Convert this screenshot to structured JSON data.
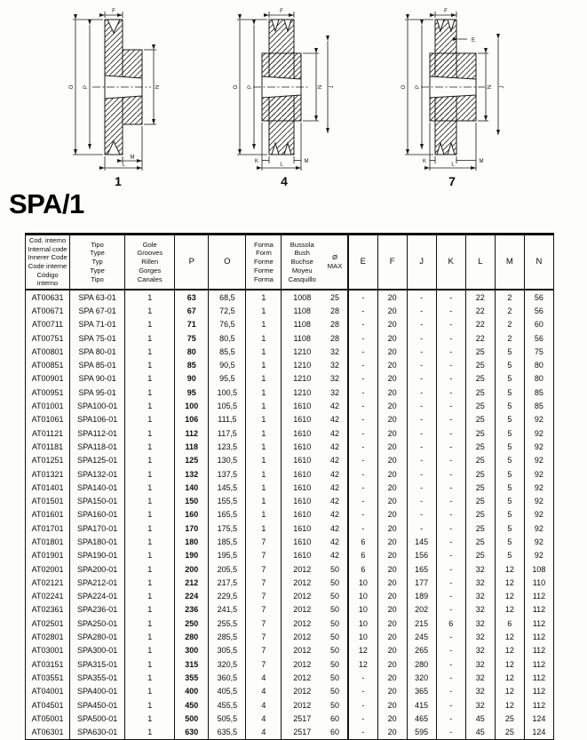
{
  "page": {
    "title": "SPA/1"
  },
  "drawings": [
    {
      "number": "1",
      "labels": {
        "f": "F",
        "o": "O",
        "p": "P",
        "n": "N",
        "m": "M",
        "l": "L"
      }
    },
    {
      "number": "4",
      "labels": {
        "f": "F",
        "o": "O",
        "p": "P",
        "n": "N",
        "j": "J",
        "k": "K",
        "m": "M",
        "l": "L"
      }
    },
    {
      "number": "7",
      "labels": {
        "f": "F",
        "e": "E",
        "o": "O",
        "p": "P",
        "n": "N",
        "j": "J",
        "k": "K",
        "m": "M",
        "l": "L"
      }
    }
  ],
  "table": {
    "headers": {
      "code": [
        "Cod. interno",
        "Internal code",
        "Innerer Code",
        "Code interne",
        "Código interno"
      ],
      "type": [
        "Tipo",
        "Type",
        "Typ",
        "Type",
        "Tipo"
      ],
      "grooves": [
        "Gole",
        "Grooves",
        "Rillen",
        "Gorges",
        "Canales"
      ],
      "p": "P",
      "o": "O",
      "form": [
        "Forma",
        "Form",
        "Forme",
        "Forme",
        "Forma"
      ],
      "bush": [
        "Bussola",
        "Bush",
        "Buchse",
        "Moyeu",
        "Casquillo"
      ],
      "omax": [
        "Ø",
        "MAX"
      ],
      "dims": [
        "E",
        "F",
        "J",
        "K",
        "L",
        "M",
        "N"
      ]
    },
    "rows": [
      [
        "AT00631",
        "SPA 63-01",
        "1",
        "63",
        "68,5",
        "1",
        "1008",
        "25",
        "-",
        "20",
        "-",
        "-",
        "22",
        "2",
        "56"
      ],
      [
        "AT00671",
        "SPA 67-01",
        "1",
        "67",
        "72,5",
        "1",
        "1108",
        "28",
        "-",
        "20",
        "-",
        "-",
        "22",
        "2",
        "56"
      ],
      [
        "AT00711",
        "SPA 71-01",
        "1",
        "71",
        "76,5",
        "1",
        "1108",
        "28",
        "-",
        "20",
        "-",
        "-",
        "22",
        "2",
        "60"
      ],
      [
        "AT00751",
        "SPA 75-01",
        "1",
        "75",
        "80,5",
        "1",
        "1108",
        "28",
        "-",
        "20",
        "-",
        "-",
        "22",
        "2",
        "56"
      ],
      [
        "AT00801",
        "SPA 80-01",
        "1",
        "80",
        "85,5",
        "1",
        "1210",
        "32",
        "-",
        "20",
        "-",
        "-",
        "25",
        "5",
        "75"
      ],
      [
        "AT00851",
        "SPA 85-01",
        "1",
        "85",
        "90,5",
        "1",
        "1210",
        "32",
        "-",
        "20",
        "-",
        "-",
        "25",
        "5",
        "80"
      ],
      [
        "AT00901",
        "SPA 90-01",
        "1",
        "90",
        "95,5",
        "1",
        "1210",
        "32",
        "-",
        "20",
        "-",
        "-",
        "25",
        "5",
        "80"
      ],
      [
        "AT00951",
        "SPA 95-01",
        "1",
        "95",
        "100,5",
        "1",
        "1210",
        "32",
        "-",
        "20",
        "-",
        "-",
        "25",
        "5",
        "85"
      ],
      [
        "AT01001",
        "SPA100-01",
        "1",
        "100",
        "105,5",
        "1",
        "1610",
        "42",
        "-",
        "20",
        "-",
        "-",
        "25",
        "5",
        "85"
      ],
      [
        "AT01061",
        "SPA106-01",
        "1",
        "106",
        "111,5",
        "1",
        "1610",
        "42",
        "-",
        "20",
        "-",
        "-",
        "25",
        "5",
        "92"
      ],
      [
        "AT01121",
        "SPA112-01",
        "1",
        "112",
        "117,5",
        "1",
        "1610",
        "42",
        "-",
        "20",
        "-",
        "-",
        "25",
        "5",
        "92"
      ],
      [
        "AT01181",
        "SPA118-01",
        "1",
        "118",
        "123,5",
        "1",
        "1610",
        "42",
        "-",
        "20",
        "-",
        "-",
        "25",
        "5",
        "92"
      ],
      [
        "AT01251",
        "SPA125-01",
        "1",
        "125",
        "130,5",
        "1",
        "1610",
        "42",
        "-",
        "20",
        "-",
        "-",
        "25",
        "5",
        "92"
      ],
      [
        "AT01321",
        "SPA132-01",
        "1",
        "132",
        "137,5",
        "1",
        "1610",
        "42",
        "-",
        "20",
        "-",
        "-",
        "25",
        "5",
        "92"
      ],
      [
        "AT01401",
        "SPA140-01",
        "1",
        "140",
        "145,5",
        "1",
        "1610",
        "42",
        "-",
        "20",
        "-",
        "-",
        "25",
        "5",
        "92"
      ],
      [
        "AT01501",
        "SPA150-01",
        "1",
        "150",
        "155,5",
        "1",
        "1610",
        "42",
        "-",
        "20",
        "-",
        "-",
        "25",
        "5",
        "92"
      ],
      [
        "AT01601",
        "SPA160-01",
        "1",
        "160",
        "165,5",
        "1",
        "1610",
        "42",
        "-",
        "20",
        "-",
        "-",
        "25",
        "5",
        "92"
      ],
      [
        "AT01701",
        "SPA170-01",
        "1",
        "170",
        "175,5",
        "1",
        "1610",
        "42",
        "-",
        "20",
        "-",
        "-",
        "25",
        "5",
        "92"
      ],
      [
        "AT01801",
        "SPA180-01",
        "1",
        "180",
        "185,5",
        "7",
        "1610",
        "42",
        "6",
        "20",
        "145",
        "-",
        "25",
        "5",
        "92"
      ],
      [
        "AT01901",
        "SPA190-01",
        "1",
        "190",
        "195,5",
        "7",
        "1610",
        "42",
        "6",
        "20",
        "156",
        "-",
        "25",
        "5",
        "92"
      ],
      [
        "AT02001",
        "SPA200-01",
        "1",
        "200",
        "205,5",
        "7",
        "2012",
        "50",
        "6",
        "20",
        "165",
        "-",
        "32",
        "12",
        "108"
      ],
      [
        "AT02121",
        "SPA212-01",
        "1",
        "212",
        "217,5",
        "7",
        "2012",
        "50",
        "10",
        "20",
        "177",
        "-",
        "32",
        "12",
        "110"
      ],
      [
        "AT02241",
        "SPA224-01",
        "1",
        "224",
        "229,5",
        "7",
        "2012",
        "50",
        "10",
        "20",
        "189",
        "-",
        "32",
        "12",
        "112"
      ],
      [
        "AT02361",
        "SPA236-01",
        "1",
        "236",
        "241,5",
        "7",
        "2012",
        "50",
        "10",
        "20",
        "202",
        "-",
        "32",
        "12",
        "112"
      ],
      [
        "AT02501",
        "SPA250-01",
        "1",
        "250",
        "255,5",
        "7",
        "2012",
        "50",
        "10",
        "20",
        "215",
        "6",
        "32",
        "6",
        "112"
      ],
      [
        "AT02801",
        "SPA280-01",
        "1",
        "280",
        "285,5",
        "7",
        "2012",
        "50",
        "10",
        "20",
        "245",
        "-",
        "32",
        "12",
        "112"
      ],
      [
        "AT03001",
        "SPA300-01",
        "1",
        "300",
        "305,5",
        "7",
        "2012",
        "50",
        "12",
        "20",
        "265",
        "-",
        "32",
        "12",
        "112"
      ],
      [
        "AT03151",
        "SPA315-01",
        "1",
        "315",
        "320,5",
        "7",
        "2012",
        "50",
        "12",
        "20",
        "280",
        "-",
        "32",
        "12",
        "112"
      ],
      [
        "AT03551",
        "SPA355-01",
        "1",
        "355",
        "360,5",
        "4",
        "2012",
        "50",
        "-",
        "20",
        "320",
        "-",
        "32",
        "12",
        "112"
      ],
      [
        "AT04001",
        "SPA400-01",
        "1",
        "400",
        "405,5",
        "4",
        "2012",
        "50",
        "-",
        "20",
        "365",
        "-",
        "32",
        "12",
        "112"
      ],
      [
        "AT04501",
        "SPA450-01",
        "1",
        "450",
        "455,5",
        "4",
        "2012",
        "50",
        "-",
        "20",
        "415",
        "-",
        "32",
        "12",
        "112"
      ],
      [
        "AT05001",
        "SPA500-01",
        "1",
        "500",
        "505,5",
        "4",
        "2517",
        "60",
        "-",
        "20",
        "465",
        "-",
        "45",
        "25",
        "124"
      ],
      [
        "AT06301",
        "SPA630-01",
        "1",
        "630",
        "635,5",
        "4",
        "2517",
        "60",
        "-",
        "20",
        "595",
        "-",
        "45",
        "25",
        "124"
      ]
    ]
  }
}
